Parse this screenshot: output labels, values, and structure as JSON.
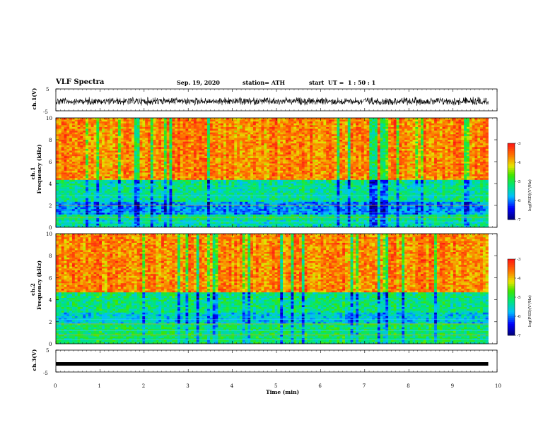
{
  "header": {
    "title": "VLF Spectra",
    "date": "Sep. 19, 2020",
    "station": "station= ATH",
    "start": "start  UT =  1 : 50 : 1"
  },
  "chart_data": [
    {
      "type": "line",
      "panel": "ch1-waveform",
      "ylabel": "ch.1(V)",
      "ylim": [
        -5,
        5
      ],
      "yticks": [
        "5",
        "-5"
      ],
      "xlim": [
        0,
        10
      ],
      "grid": false
    },
    {
      "type": "heatmap",
      "panel": "ch1-spectrogram",
      "ylabel": "ch.1 Frequency (kHz)",
      "ylabel_ch": "ch.1",
      "ylabel_freq": "Frequency (kHz)",
      "ylim": [
        0,
        10
      ],
      "yticks": [
        "0",
        "2",
        "4",
        "6",
        "8",
        "10"
      ],
      "xlim": [
        0,
        9.8
      ],
      "colorbar": {
        "label": "log(PSD)(V²/Hz)",
        "range": [
          -7,
          -3
        ],
        "ticks": [
          "-3",
          "-4",
          "-5",
          "-6",
          "-7"
        ]
      },
      "bands": [
        {
          "from": 0,
          "to": 0.6,
          "level": -5.4
        },
        {
          "from": 0.6,
          "to": 1.2,
          "level": -5.2
        },
        {
          "from": 1.2,
          "to": 2.4,
          "level": -5.9
        },
        {
          "from": 2.4,
          "to": 4.3,
          "level": -5.3
        },
        {
          "from": 4.3,
          "to": 10,
          "level": -3.7
        }
      ]
    },
    {
      "type": "heatmap",
      "panel": "ch2-spectrogram",
      "ylabel": "ch.2 Frequency (kHz)",
      "ylabel_ch": "ch.2",
      "ylabel_freq": "Frequency (kHz)",
      "ylim": [
        0,
        10
      ],
      "yticks": [
        "0",
        "2",
        "4",
        "6",
        "8",
        "10"
      ],
      "xlim": [
        0,
        9.8
      ],
      "colorbar": {
        "label": "log(PSD)(V²/Hz)",
        "range": [
          -7,
          -3
        ],
        "ticks": [
          "-3",
          "-4",
          "-5",
          "-6",
          "-7"
        ]
      },
      "bands": [
        {
          "from": 0,
          "to": 1.8,
          "level": -5.1
        },
        {
          "from": 1.8,
          "to": 2.8,
          "level": -5.6
        },
        {
          "from": 2.8,
          "to": 4.6,
          "level": -5.2
        },
        {
          "from": 4.6,
          "to": 10,
          "level": -3.7
        }
      ]
    },
    {
      "type": "line",
      "panel": "ch3-waveform",
      "ylabel": "ch.3(V)",
      "ylim": [
        -5,
        5
      ],
      "yticks": [
        "5",
        "-5"
      ],
      "xlim": [
        0,
        10
      ],
      "level": -1.3,
      "grid": false
    }
  ],
  "xaxis": {
    "label": "Time (min)",
    "ticks": [
      "0",
      "1",
      "2",
      "3",
      "4",
      "5",
      "6",
      "7",
      "8",
      "9",
      "10"
    ]
  },
  "colors": {
    "lineColor": "#000000",
    "background": "#ffffff"
  }
}
